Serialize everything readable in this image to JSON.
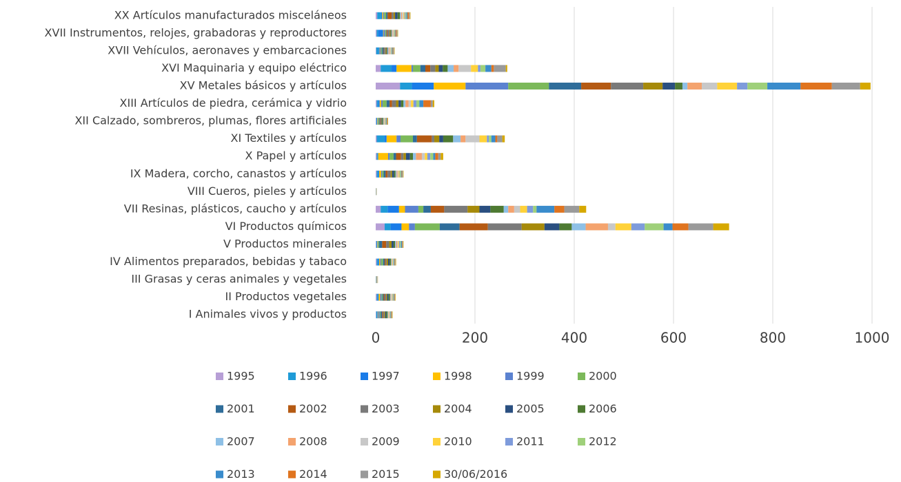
{
  "chart_data": {
    "type": "stacked-bar-horizontal",
    "categories": [
      "I Animales vivos y productos",
      "II Productos vegetales",
      "III Grasas y ceras animales y vegetales",
      "IV Alimentos preparados, bebidas y tabaco",
      "V Productos minerales",
      "VI Productos químicos",
      "VII Resinas, plásticos, caucho y artículos",
      "VIII Cueros, pieles y artículos",
      "IX Madera, corcho, canastos y artículos",
      "X Papel y artículos",
      "XI Textiles y artículos",
      "XII Calzado, sombreros, plumas, flores artificiales",
      "XIII Artículos de piedra, cerámica y vidrio",
      "XV Metales básicos y artículos",
      "XVI Maquinaria y equipo eléctrico",
      "XVII Vehículos, aeronaves y embarcaciones",
      "XVII Instrumentos, relojes, grabadoras y reproductores",
      "XX Artículos manufacturados misceláneos"
    ],
    "series": [
      {
        "name": "1995",
        "color": "#b79fd6",
        "values": [
          1,
          2,
          0.2,
          2,
          1,
          18,
          10,
          0.1,
          2,
          2,
          2,
          1,
          2,
          49,
          10,
          1,
          2,
          3
        ]
      },
      {
        "name": "1996",
        "color": "#1f9bd7",
        "values": [
          2,
          2,
          0.2,
          3,
          1,
          12,
          14,
          0.1,
          3,
          2,
          16,
          1,
          3,
          24,
          22,
          5,
          3,
          8
        ]
      },
      {
        "name": "1997",
        "color": "#1a7ce8",
        "values": [
          1,
          2,
          0.2,
          2,
          1,
          22,
          23,
          0.1,
          2,
          1,
          4,
          1,
          3,
          44,
          10,
          2,
          10,
          2
        ]
      },
      {
        "name": "1998",
        "color": "#ffc000",
        "values": [
          1,
          3,
          0.2,
          2,
          1,
          15,
          12,
          0.1,
          4,
          20,
          20,
          1,
          3,
          64,
          30,
          1,
          1,
          2
        ]
      },
      {
        "name": "1999",
        "color": "#5b82d0",
        "values": [
          3,
          3,
          0.2,
          2,
          1,
          12,
          27,
          0.1,
          2,
          3,
          8,
          1,
          3,
          86,
          3,
          2,
          3,
          2
        ]
      },
      {
        "name": "2000",
        "color": "#7cb95a",
        "values": [
          2,
          2,
          0.2,
          4,
          2,
          50,
          10,
          0.1,
          3,
          8,
          25,
          2,
          8,
          82,
          15,
          2,
          2,
          4
        ]
      },
      {
        "name": "2001",
        "color": "#2f6d9a",
        "values": [
          3,
          2,
          0.2,
          3,
          6,
          40,
          15,
          0.1,
          4,
          5,
          8,
          1,
          6,
          65,
          10,
          3,
          1,
          3
        ]
      },
      {
        "name": "2002",
        "color": "#b55a13",
        "values": [
          2,
          2,
          0.2,
          2,
          8,
          57,
          27,
          0.1,
          4,
          10,
          30,
          1,
          5,
          60,
          10,
          1,
          2,
          8
        ]
      },
      {
        "name": "2003",
        "color": "#7a7a7a",
        "values": [
          2,
          3,
          0.2,
          2,
          6,
          68,
          47,
          0.1,
          6,
          5,
          5,
          2,
          8,
          65,
          10,
          3,
          4,
          4
        ]
      },
      {
        "name": "2004",
        "color": "#a68a0a",
        "values": [
          2,
          2,
          0.2,
          3,
          5,
          46,
          24,
          0.1,
          3,
          5,
          10,
          1,
          5,
          39,
          7,
          2,
          2,
          3
        ]
      },
      {
        "name": "2005",
        "color": "#2a4f80",
        "values": [
          2,
          3,
          0.2,
          3,
          4,
          30,
          22,
          0.1,
          4,
          8,
          8,
          1,
          5,
          25,
          8,
          1,
          1,
          5
        ]
      },
      {
        "name": "2006",
        "color": "#4e7a32",
        "values": [
          3,
          3,
          0.2,
          3,
          3,
          25,
          27,
          0.1,
          3,
          6,
          20,
          2,
          5,
          15,
          10,
          1,
          1,
          5
        ]
      },
      {
        "name": "2007",
        "color": "#8ec0e6",
        "values": [
          1,
          1,
          0.2,
          1,
          2,
          28,
          9,
          0.1,
          2,
          6,
          15,
          1,
          4,
          10,
          12,
          2,
          1,
          2
        ]
      },
      {
        "name": "2008",
        "color": "#f4a36e",
        "values": [
          1,
          1,
          0.2,
          1,
          2,
          45,
          12,
          0.1,
          2,
          12,
          10,
          1,
          6,
          29,
          10,
          2,
          1,
          2
        ]
      },
      {
        "name": "2009",
        "color": "#c8c8c8",
        "values": [
          1,
          2,
          0.2,
          1,
          2,
          15,
          12,
          0.1,
          2,
          6,
          28,
          1,
          5,
          31,
          25,
          2,
          2,
          3
        ]
      },
      {
        "name": "2010",
        "color": "#ffd23a",
        "values": [
          1,
          1,
          0.2,
          1,
          2,
          32,
          14,
          0.1,
          2,
          5,
          15,
          1,
          5,
          40,
          14,
          1,
          1,
          2
        ]
      },
      {
        "name": "2011",
        "color": "#7e9bdb",
        "values": [
          1,
          1,
          0.2,
          1,
          2,
          27,
          12,
          0.1,
          1,
          6,
          4,
          1,
          6,
          21,
          5,
          1,
          1,
          2
        ]
      },
      {
        "name": "2012",
        "color": "#9fd07a",
        "values": [
          1,
          1,
          0.2,
          1,
          2,
          38,
          7,
          0.1,
          2,
          6,
          5,
          1,
          6,
          40,
          10,
          1,
          1,
          2
        ]
      },
      {
        "name": "2013",
        "color": "#3a8ccc",
        "values": [
          1,
          1,
          0.2,
          1,
          2,
          18,
          36,
          0.1,
          1,
          4,
          8,
          1,
          8,
          67,
          12,
          1,
          1,
          2
        ]
      },
      {
        "name": "2014",
        "color": "#e0741f",
        "values": [
          1,
          1,
          0.2,
          1,
          1,
          32,
          20,
          0.1,
          1,
          6,
          4,
          1,
          15,
          63,
          5,
          1,
          2,
          3
        ]
      },
      {
        "name": "2015",
        "color": "#9a9a9a",
        "values": [
          1,
          1,
          0.2,
          1,
          1,
          50,
          30,
          0.1,
          2,
          5,
          10,
          1,
          4,
          57,
          24,
          2,
          2,
          2
        ]
      },
      {
        "name": "30/06/2016",
        "color": "#d6a800",
        "values": [
          1,
          1,
          0.2,
          1,
          1,
          32,
          14,
          0.1,
          1,
          5,
          5,
          1,
          3,
          21,
          3,
          1,
          1,
          1
        ]
      }
    ],
    "xlim": [
      0,
      1000
    ],
    "xticks": [
      0,
      200,
      400,
      600,
      800,
      1000
    ],
    "grid": true,
    "legend": "bottom"
  }
}
